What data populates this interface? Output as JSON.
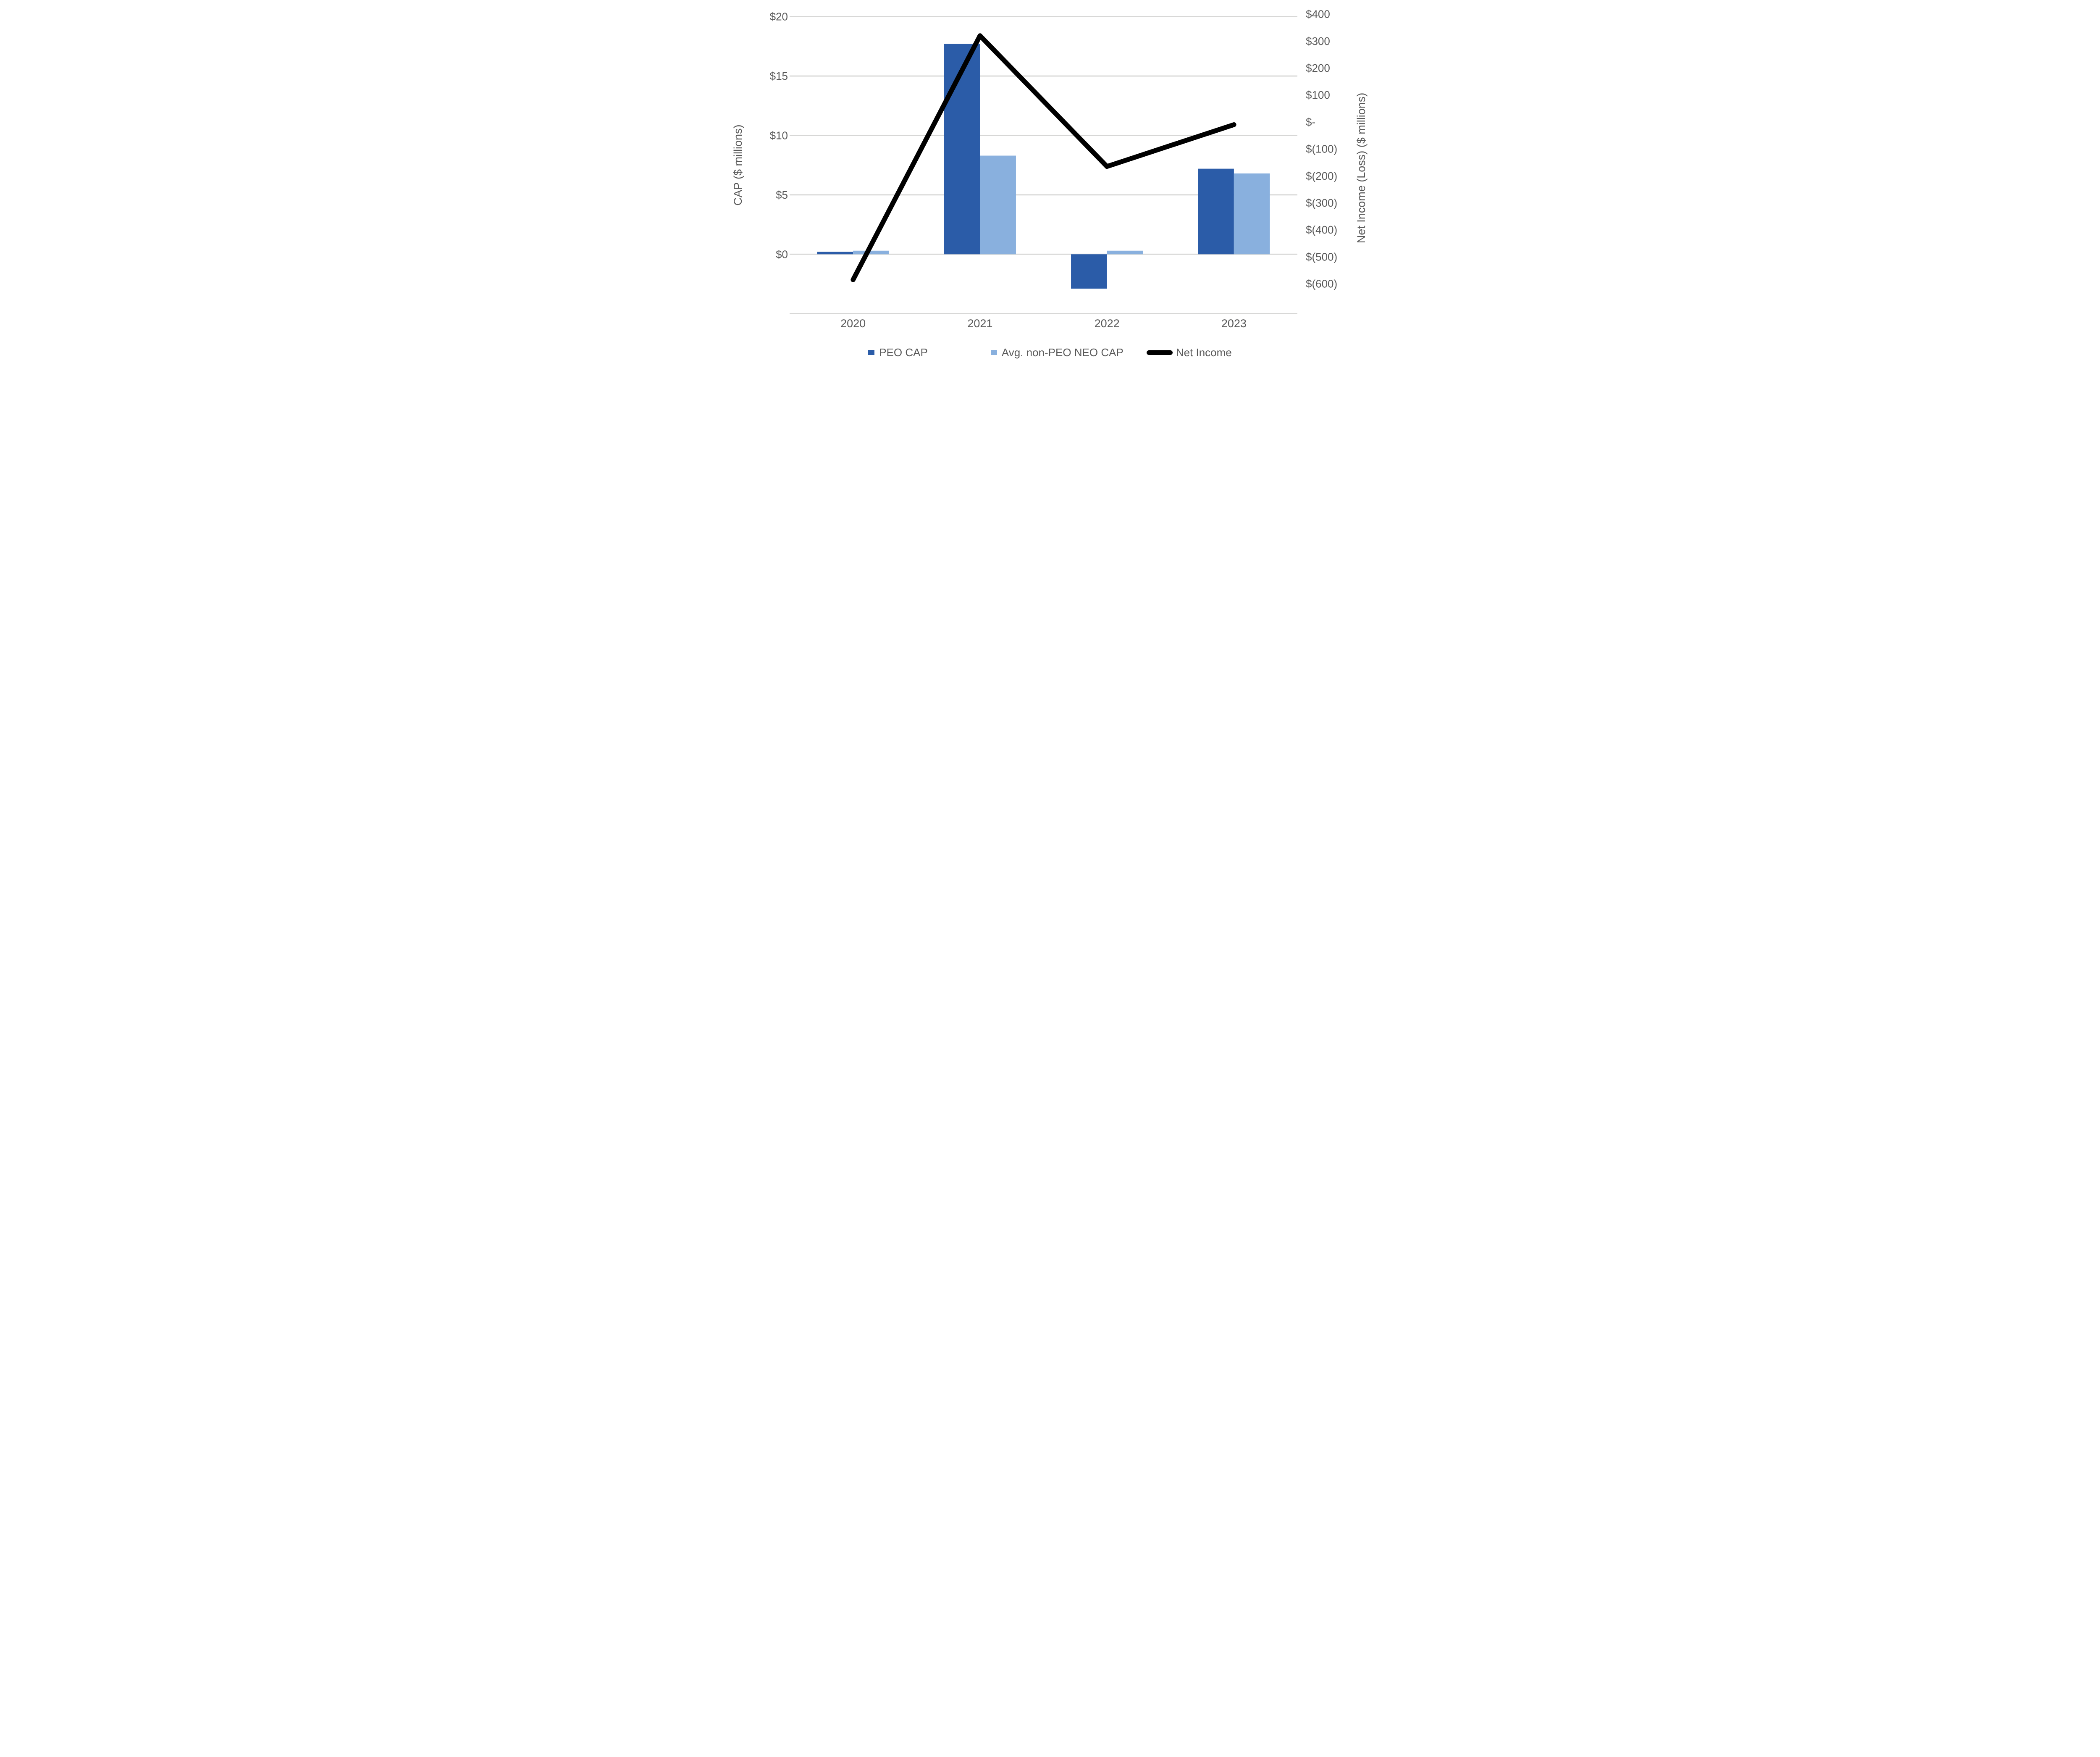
{
  "chart_data": {
    "type": "combo-bar-line",
    "categories": [
      "2020",
      "2021",
      "2022",
      "2023"
    ],
    "series": [
      {
        "name": "PEO CAP",
        "type": "bar",
        "axis": "left",
        "color": "#2B5CA8",
        "values": [
          0.2,
          17.7,
          -2.9,
          7.2
        ]
      },
      {
        "name": "Avg. non-PEO NEO CAP",
        "type": "bar",
        "axis": "left",
        "color": "#89B0DE",
        "values": [
          0.3,
          8.3,
          0.3,
          6.8
        ]
      },
      {
        "name": "Net Income",
        "type": "line",
        "axis": "right",
        "color": "#000000",
        "values": [
          -585,
          320,
          -165,
          -10
        ]
      }
    ],
    "left_axis": {
      "title": "CAP ($ millions)",
      "tick_labels": [
        "$20",
        "$15",
        "$10",
        "$5",
        "$0"
      ],
      "tick_values": [
        20,
        15,
        10,
        5,
        0
      ],
      "min": -5,
      "max": 20,
      "gridline_values": [
        20,
        15,
        10,
        5,
        0,
        -5
      ]
    },
    "right_axis": {
      "title": "Net Income (Loss) ($ millions)",
      "tick_labels": [
        "$400",
        "$300",
        "$200",
        "$100",
        "$-",
        "$(100)",
        "$(200)",
        "$(300)",
        "$(400)",
        "$(500)",
        "$(600)"
      ],
      "tick_values": [
        400,
        300,
        200,
        100,
        0,
        -100,
        -200,
        -300,
        -400,
        -500,
        -600
      ],
      "min": -600,
      "max": 400
    },
    "legend_position": "bottom",
    "grid": true,
    "colors": {
      "gridline": "#D6D6D5",
      "text": "#595959",
      "background": "#FFFFFF"
    }
  }
}
